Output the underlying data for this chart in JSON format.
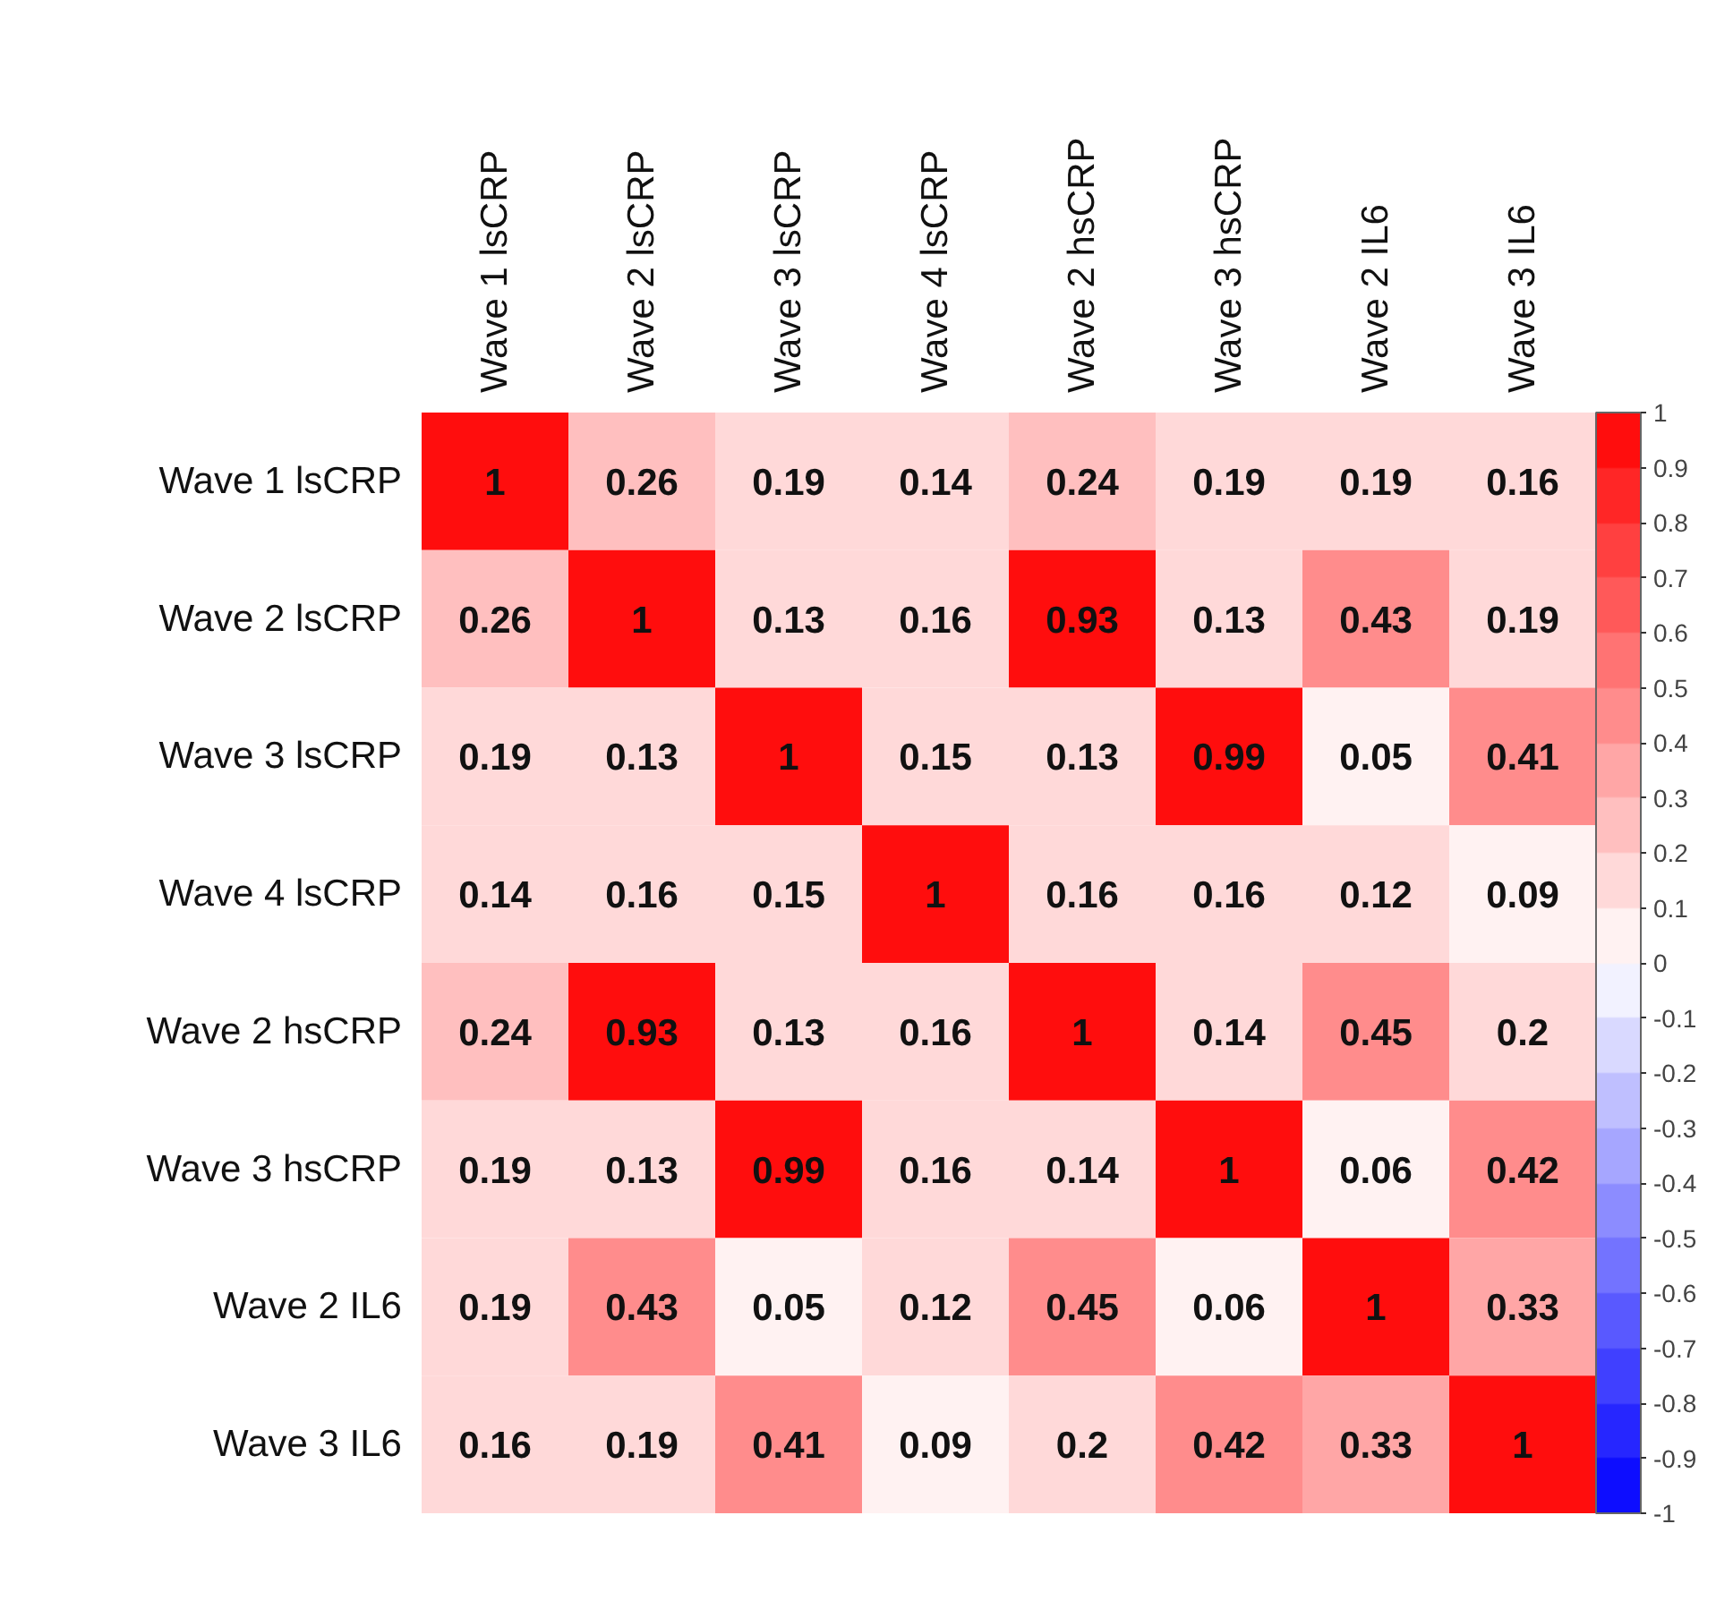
{
  "chart_data": {
    "type": "heatmap",
    "categories": [
      "Wave 1 lsCRP",
      "Wave 2 lsCRP",
      "Wave 3 lsCRP",
      "Wave 4 lsCRP",
      "Wave 2 hsCRP",
      "Wave 3 hsCRP",
      "Wave 2 IL6",
      "Wave 3 IL6"
    ],
    "y_categories": [
      "Wave 1 lsCRP",
      "Wave 2 lsCRP",
      "Wave 3 lsCRP",
      "Wave 4 lsCRP",
      "Wave 2 hsCRP",
      "Wave 3 hsCRP",
      "Wave 2 IL6",
      "Wave 3 IL6"
    ],
    "cells": [
      [
        1,
        0.26,
        0.19,
        0.14,
        0.24,
        0.19,
        0.19,
        0.16
      ],
      [
        0.26,
        1,
        0.13,
        0.16,
        0.93,
        0.13,
        0.43,
        0.19
      ],
      [
        0.19,
        0.13,
        1,
        0.15,
        0.13,
        0.99,
        0.05,
        0.41
      ],
      [
        0.14,
        0.16,
        0.15,
        1,
        0.16,
        0.16,
        0.12,
        0.09
      ],
      [
        0.24,
        0.93,
        0.13,
        0.16,
        1,
        0.14,
        0.45,
        0.2
      ],
      [
        0.19,
        0.13,
        0.99,
        0.16,
        0.14,
        1,
        0.06,
        0.42
      ],
      [
        0.19,
        0.43,
        0.05,
        0.12,
        0.45,
        0.06,
        1,
        0.33
      ],
      [
        0.16,
        0.19,
        0.41,
        0.09,
        0.2,
        0.42,
        0.33,
        1
      ]
    ],
    "data_labels": true,
    "clim": [
      -1,
      1
    ],
    "cticks": [
      -1,
      -0.9,
      -0.8,
      -0.7,
      -0.6,
      -0.5,
      -0.4,
      -0.3,
      -0.2,
      -0.1,
      0,
      0.1,
      0.2,
      0.3,
      0.4,
      0.5,
      0.6,
      0.7,
      0.8,
      0.9,
      1
    ]
  }
}
